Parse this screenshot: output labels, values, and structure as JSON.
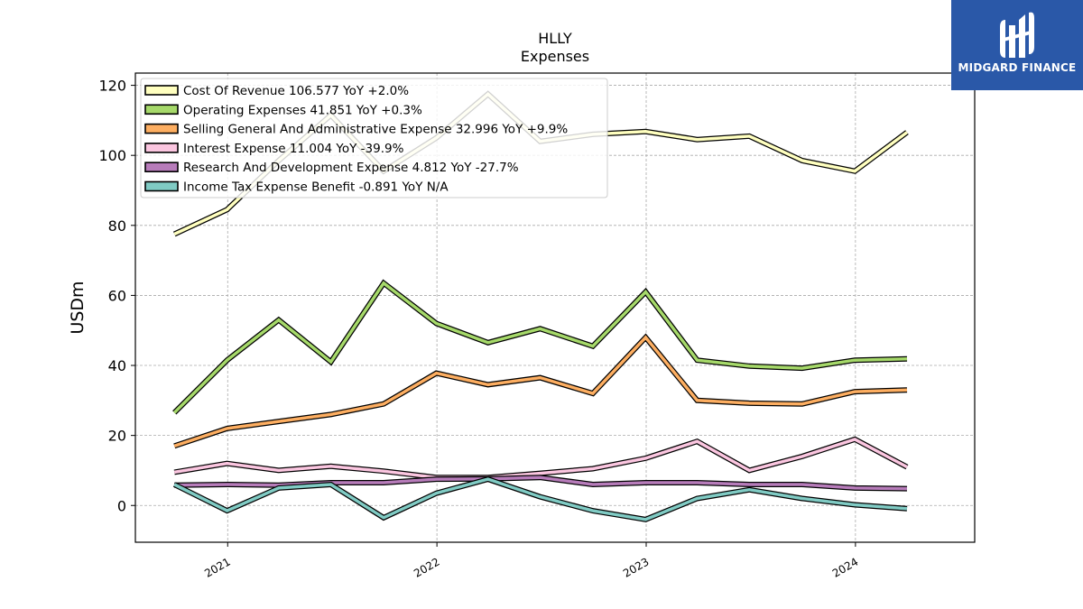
{
  "brand": {
    "name": "MIDGARD FINANCE",
    "bg_color": "#2a58a8"
  },
  "chart_data": {
    "type": "line",
    "title": "HLLY",
    "subtitle": "Expenses",
    "xlabel": "",
    "ylabel": "USDm",
    "ylim": [
      -10.5,
      123.5
    ],
    "xlim": [
      "2020-07-24",
      "2024-07-27"
    ],
    "yticks": [
      0,
      20,
      40,
      60,
      80,
      100,
      120
    ],
    "xticks": [
      "2021",
      "2022",
      "2023",
      "2024"
    ],
    "grid": true,
    "legend_position": "top-left",
    "x": [
      "2020-09-30",
      "2020-12-31",
      "2021-03-31",
      "2021-06-30",
      "2021-09-30",
      "2021-12-31",
      "2022-03-31",
      "2022-06-30",
      "2022-09-30",
      "2022-12-31",
      "2023-03-31",
      "2023-06-30",
      "2023-09-30",
      "2023-12-31",
      "2024-03-31"
    ],
    "series": [
      {
        "name": "Cost Of Revenue",
        "legend": "Cost Of Revenue  106.577 YoY +2.0%",
        "color": "#ffffbf",
        "values": [
          77.5,
          84.5,
          98.5,
          111.5,
          95.5,
          105.0,
          117.5,
          104.0,
          106.0,
          106.8,
          104.5,
          105.5,
          98.5,
          95.5,
          106.6
        ]
      },
      {
        "name": "Operating Expenses",
        "legend": "Operating Expenses  41.851 YoY +0.3%",
        "color": "#a6d96a",
        "values": [
          26.5,
          41.5,
          53.0,
          41.0,
          63.5,
          52.0,
          46.5,
          50.5,
          45.5,
          61.0,
          41.5,
          39.8,
          39.2,
          41.5,
          41.9
        ]
      },
      {
        "name": "Selling General And Administrative Expense",
        "legend": "Selling General And Administrative Expense  32.996 YoY +9.9%",
        "color": "#fdae61",
        "values": [
          17.0,
          22.0,
          24.0,
          26.0,
          29.0,
          37.8,
          34.5,
          36.5,
          32.0,
          48.0,
          30.0,
          29.2,
          29.0,
          32.5,
          33.0
        ]
      },
      {
        "name": "Interest Expense",
        "legend": "Interest Expense  11.004 YoY -39.9%",
        "color": "#fbc6e0",
        "values": [
          9.5,
          12.0,
          10.0,
          11.2,
          9.8,
          8.0,
          8.0,
          9.2,
          10.5,
          13.5,
          18.3,
          10.0,
          14.0,
          18.9,
          11.0
        ]
      },
      {
        "name": "Research And Development Expense",
        "legend": "Research And Development Expense  4.812 YoY -27.7%",
        "color": "#b77cba",
        "values": [
          5.8,
          6.0,
          5.8,
          6.5,
          6.5,
          7.5,
          7.6,
          8.0,
          6.0,
          6.5,
          6.5,
          6.0,
          6.0,
          5.0,
          4.8
        ]
      },
      {
        "name": "Income Tax Expense Benefit",
        "legend": "Income Tax Expense Benefit  -0.891 YoY N/A",
        "color": "#80cbc4",
        "values": [
          6.0,
          -1.5,
          5.0,
          6.0,
          -3.5,
          3.5,
          7.5,
          2.5,
          -1.5,
          -4.0,
          2.0,
          4.5,
          2.0,
          0.2,
          -0.9
        ]
      }
    ]
  }
}
